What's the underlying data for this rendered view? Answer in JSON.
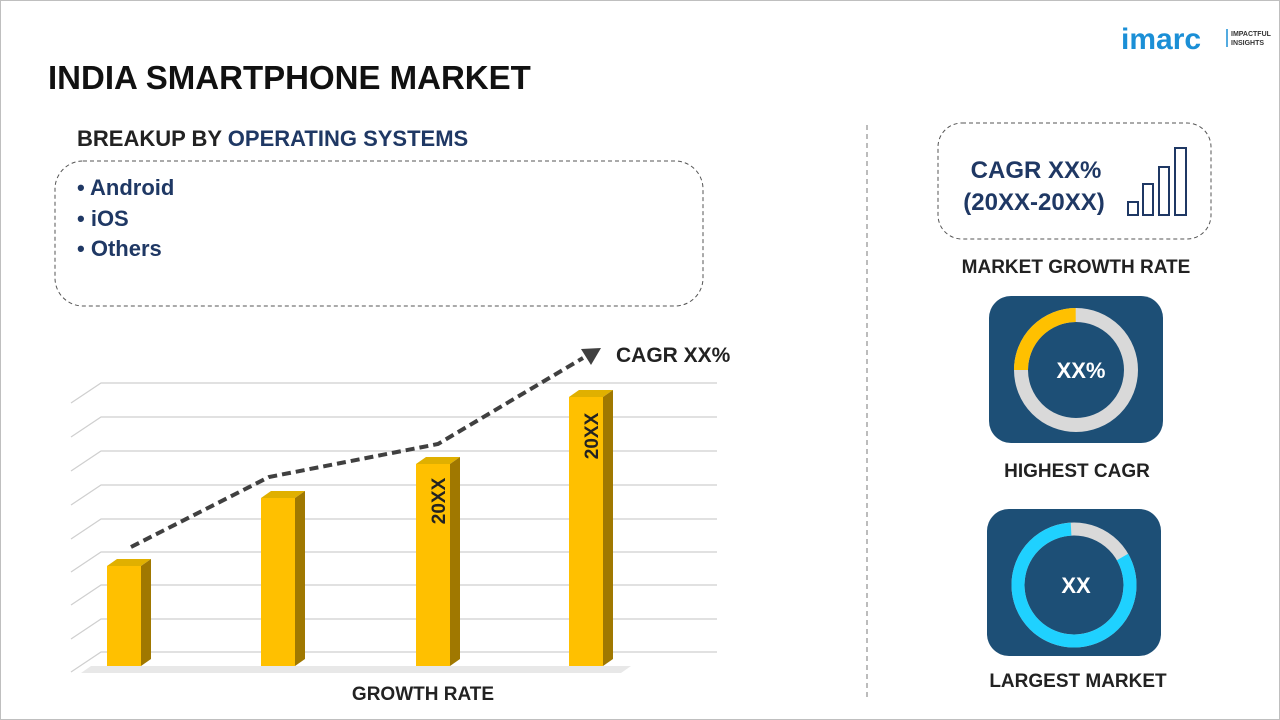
{
  "logo": {
    "name": "imarc",
    "tagline": [
      "IMPACTFUL",
      "INSIGHTS"
    ]
  },
  "title": "INDIA SMARTPHONE MARKET",
  "breakup": {
    "heading_prefix": "BREAKUP BY",
    "heading_highlight": "OPERATING SYSTEMS",
    "items": [
      "Android",
      "iOS",
      "Others"
    ]
  },
  "growth_chart": {
    "trend_label": "CAGR XX%",
    "bar_labels": [
      "20XX",
      "20XX"
    ],
    "caption": "GROWTH RATE"
  },
  "market_growth": {
    "cagr": "CAGR XX%",
    "period": "(20XX-20XX)",
    "caption": "MARKET GROWTH RATE"
  },
  "highest_cagr": {
    "value": "XX%",
    "caption": "HIGHEST CAGR"
  },
  "largest_market": {
    "value": "XX",
    "caption": "LARGEST MARKET"
  }
}
